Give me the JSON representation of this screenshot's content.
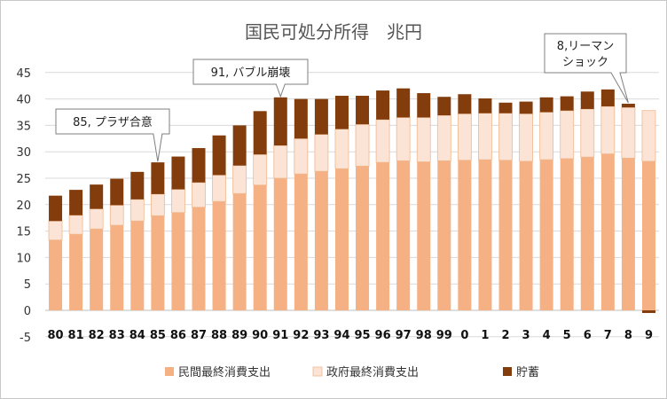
{
  "chart_data": {
    "type": "bar",
    "stacked": true,
    "title": "国民可処分所得　兆円",
    "xlabel": "",
    "ylabel": "",
    "ylim": [
      -5,
      45
    ],
    "yticks": [
      -5,
      0,
      5,
      10,
      15,
      20,
      25,
      30,
      35,
      40,
      45
    ],
    "grid": true,
    "legend_position": "bottom",
    "categories": [
      "80",
      "81",
      "82",
      "83",
      "84",
      "85",
      "86",
      "87",
      "88",
      "89",
      "90",
      "91",
      "92",
      "93",
      "94",
      "95",
      "96",
      "97",
      "98",
      "99",
      "0",
      "1",
      "2",
      "3",
      "4",
      "5",
      "6",
      "7",
      "8",
      "9"
    ],
    "series": [
      {
        "name": "民間最終消費支出",
        "color": "#f5b183",
        "values": [
          13.3,
          14.4,
          15.4,
          16.1,
          16.9,
          17.9,
          18.5,
          19.5,
          20.6,
          22.1,
          23.7,
          25.0,
          25.8,
          26.3,
          26.8,
          27.3,
          28.0,
          28.3,
          28.1,
          28.3,
          28.4,
          28.5,
          28.4,
          28.2,
          28.5,
          28.7,
          29.0,
          29.6,
          28.8,
          28.2
        ]
      },
      {
        "name": "政府最終消費支出",
        "color": "#fbe4d5",
        "values": [
          3.6,
          3.6,
          3.8,
          3.8,
          4.1,
          4.1,
          4.4,
          4.7,
          5.0,
          5.3,
          5.8,
          6.2,
          6.7,
          7.0,
          7.5,
          7.9,
          8.1,
          8.2,
          8.4,
          8.6,
          8.8,
          8.8,
          8.9,
          9.0,
          9.0,
          9.1,
          9.1,
          9.0,
          9.6,
          9.6
        ]
      },
      {
        "name": "貯蓄",
        "color": "#833c0b",
        "values": [
          4.8,
          4.8,
          4.6,
          5.0,
          5.2,
          6.0,
          6.2,
          6.5,
          7.5,
          7.6,
          8.2,
          9.1,
          7.5,
          6.7,
          6.3,
          5.4,
          5.5,
          5.5,
          4.6,
          3.5,
          3.7,
          2.8,
          2.0,
          2.3,
          2.8,
          2.7,
          3.3,
          3.2,
          0.7,
          -0.5
        ]
      }
    ],
    "annotations": [
      {
        "text": "85, プラザ合意",
        "category": "85"
      },
      {
        "text": "91, バブル崩壊",
        "category": "91"
      },
      {
        "text": "8,リーマン",
        "text2": "ショック",
        "category": "8"
      }
    ]
  }
}
